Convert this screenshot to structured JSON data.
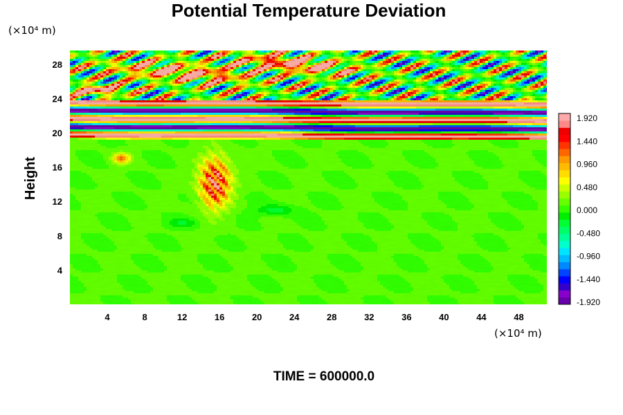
{
  "chart_data": {
    "type": "heatmap",
    "title": "Potential Temperature Deviation",
    "xlabel": "",
    "ylabel": "Height",
    "x_unit_label": "(×10⁴ m)",
    "y_unit_label": "(×10⁴ m)",
    "x_range": [
      0,
      51
    ],
    "y_range": [
      0,
      29.6
    ],
    "x_ticks": [
      4,
      8,
      12,
      16,
      20,
      24,
      28,
      32,
      36,
      40,
      44,
      48
    ],
    "y_ticks": [
      4,
      8,
      12,
      16,
      20,
      24,
      28
    ],
    "colorbar": {
      "range": [
        -1.92,
        1.92
      ],
      "labels": [
        "1.920",
        "1.440",
        "0.960",
        "0.480",
        "0.000",
        "-0.480",
        "-0.960",
        "-1.440",
        "-1.920"
      ],
      "colors": [
        "#6600aa",
        "#8800cc",
        "#3300cc",
        "#0000ff",
        "#0044ff",
        "#0088ff",
        "#00bbff",
        "#00e5ff",
        "#00ffcc",
        "#00ff99",
        "#00ff66",
        "#00ff33",
        "#00ee00",
        "#33ff00",
        "#66ff00",
        "#99ff00",
        "#ccff00",
        "#ffff00",
        "#ffdd00",
        "#ffbb00",
        "#ff9900",
        "#ff6600",
        "#ff3300",
        "#ff0000",
        "#ee0000",
        "#ff8888",
        "#ffaaaa"
      ]
    },
    "field_description_layers": [
      {
        "feature": "alternating bands",
        "y_from": 19.5,
        "y_to": 23.5,
        "values": [
          1.9,
          -1.9
        ]
      },
      {
        "feature": "wavy gravity-wave region",
        "y_from": 23,
        "y_to": 29.6,
        "amplitude": 1.9
      },
      {
        "feature": "convective cell",
        "x": 15.5,
        "y": 14.5,
        "peak": 1.9
      },
      {
        "feature": "background",
        "value": 0.1
      }
    ]
  },
  "footer": {
    "time_label": "TIME = 600000.0"
  }
}
